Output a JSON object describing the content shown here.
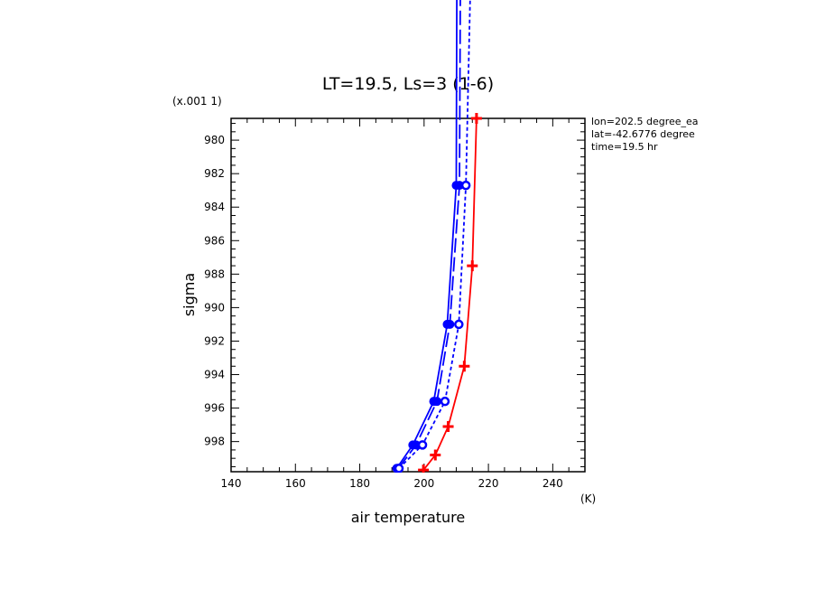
{
  "chart_data": {
    "type": "line",
    "title": "LT=19.5, Ls=3 (1-6)",
    "xlabel": "air temperature",
    "ylabel": "sigma",
    "x_units": "(K)",
    "y_scale_label": "(x.001 1)",
    "xlim": [
      140,
      250
    ],
    "ylim": [
      999.8,
      978.7
    ],
    "x_ticks": [
      140,
      160,
      180,
      200,
      220,
      240
    ],
    "y_ticks": [
      980,
      982,
      984,
      986,
      988,
      990,
      992,
      994,
      996,
      998
    ],
    "annotations": [
      "lon=202.5 degree_ea",
      "lat=-42.6776 degree",
      "time=19.5 hr"
    ],
    "series": [
      {
        "color": "#ff0000",
        "dash": "solid",
        "marker": "plus",
        "points": [
          [
            199.8,
            999.7
          ],
          [
            203.5,
            998.8
          ],
          [
            207.5,
            997.1
          ],
          [
            212.5,
            993.5
          ],
          [
            215.0,
            987.5
          ],
          [
            216.3,
            978.7
          ]
        ]
      },
      {
        "color": "#0000ff",
        "dash": "solid",
        "marker": "filled-circle",
        "points": [
          [
            191.5,
            999.6
          ],
          [
            196.5,
            998.2
          ],
          [
            203.0,
            995.6
          ],
          [
            207.2,
            991.0
          ],
          [
            210.0,
            982.7
          ],
          [
            210.2,
            970.0
          ]
        ]
      },
      {
        "color": "#0000ff",
        "dash": "longdash",
        "marker": "filled-circle",
        "points": [
          [
            192.0,
            999.6
          ],
          [
            197.5,
            998.2
          ],
          [
            204.0,
            995.6
          ],
          [
            208.0,
            991.0
          ],
          [
            211.0,
            982.7
          ],
          [
            211.3,
            970.0
          ]
        ]
      },
      {
        "color": "#0000ff",
        "dash": "shortdash",
        "marker": "open-circle",
        "points": [
          [
            192.2,
            999.6
          ],
          [
            199.5,
            998.2
          ],
          [
            206.5,
            995.6
          ],
          [
            210.8,
            991.0
          ],
          [
            213.0,
            982.7
          ],
          [
            214.5,
            970.0
          ]
        ]
      }
    ]
  }
}
